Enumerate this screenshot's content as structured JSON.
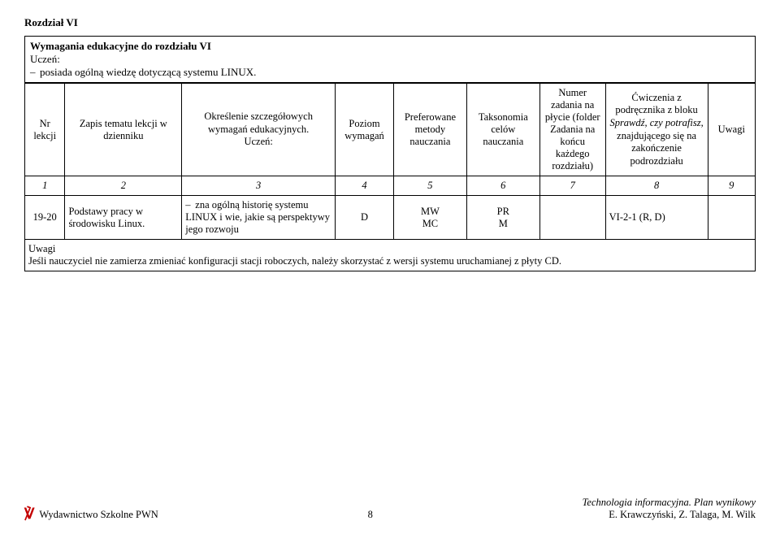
{
  "chapter_title": "Rozdział VI",
  "intro": {
    "title": "Wymagania edukacyjne do rozdziału VI",
    "line1": "Uczeń:",
    "bullet1": "posiada ogólną wiedzę dotyczącą systemu LINUX."
  },
  "headers": {
    "c1": "Nr lekcji",
    "c2": "Zapis tematu lekcji w dzienniku",
    "c3_a": "Określenie szczegółowych wymagań edukacyjnych.",
    "c3_b": "Uczeń:",
    "c4": "Poziom wymagań",
    "c5": "Preferowane metody nauczania",
    "c6": "Taksonomia celów nauczania",
    "c7": "Numer zadania na płycie (folder Zadania na końcu każdego rozdziału)",
    "c8_a": "Ćwiczenia z podręcznika z bloku ",
    "c8_b": "Sprawdź, czy potrafisz",
    "c8_c": ", znajdującego się na zakończenie podrozdziału",
    "c9": "Uwagi"
  },
  "numrow": {
    "c1": "1",
    "c2": "2",
    "c3": "3",
    "c4": "4",
    "c5": "5",
    "c6": "6",
    "c7": "7",
    "c8": "8",
    "c9": "9"
  },
  "row": {
    "c1": "19-20",
    "c2": "Podstawy pracy w środowisku Linux.",
    "c3": "zna ogólną historię systemu LINUX i wie, jakie są perspektywy jego rozwoju",
    "c4": "D",
    "c5a": "MW",
    "c5b": "MC",
    "c6a": "PR",
    "c6b": "M",
    "c7": "",
    "c8": "VI-2-1 (R, D)",
    "c9": ""
  },
  "uwagi": {
    "title": "Uwagi",
    "text": "Jeśli nauczyciel nie zamierza zmieniać konfiguracji stacji roboczych, należy skorzystać z  wersji systemu uruchamianej z płyty CD."
  },
  "footer": {
    "logo": "℣",
    "publisher": "Wydawnictwo Szkolne PWN",
    "page": "8",
    "right_title": "Technologia informacyjna. Plan wynikowy",
    "right_authors": "E. Krawczyński, Z. Talaga, M. Wilk"
  },
  "layout": {
    "border_color": "#000000",
    "logo_color": "#c40000",
    "font_family": "Times New Roman"
  }
}
